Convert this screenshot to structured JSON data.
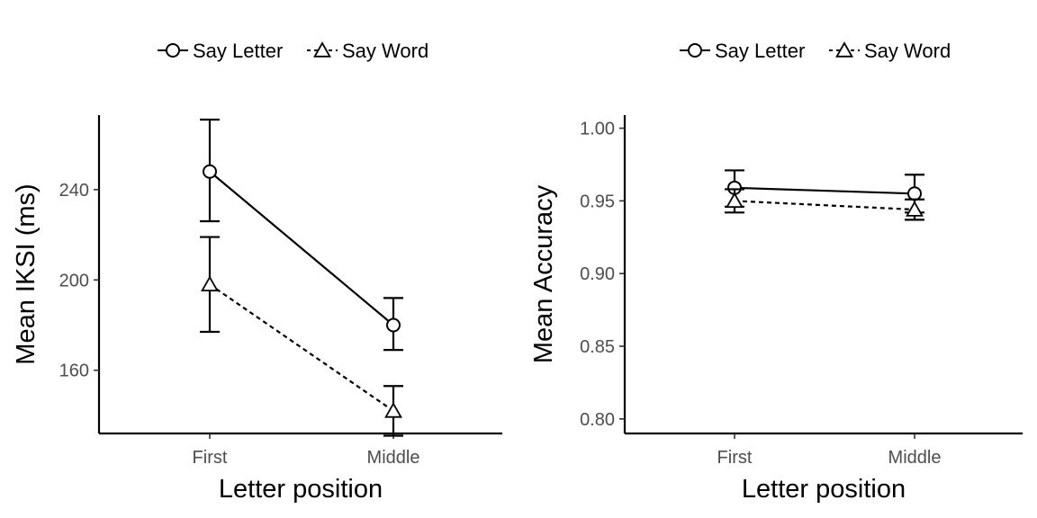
{
  "chart_data": [
    {
      "type": "line",
      "xlabel": "Letter position",
      "ylabel": "Mean IKSI (ms)",
      "categories": [
        "First",
        "Middle"
      ],
      "yticks": [
        160,
        200,
        240
      ],
      "ylim": [
        132,
        273
      ],
      "grid": false,
      "legend_position": "top",
      "series": [
        {
          "name": "Say Letter",
          "marker": "circle",
          "linestyle": "solid",
          "values": [
            248,
            180
          ],
          "err_low": [
            226,
            169
          ],
          "err_high": [
            271,
            192
          ]
        },
        {
          "name": "Say Word",
          "marker": "triangle",
          "linestyle": "dashed",
          "values": [
            198,
            142
          ],
          "err_low": [
            177,
            131
          ],
          "err_high": [
            219,
            153
          ]
        }
      ]
    },
    {
      "type": "line",
      "xlabel": "Letter position",
      "ylabel": "Mean Accuracy",
      "categories": [
        "First",
        "Middle"
      ],
      "yticks": [
        "0.80",
        "0.85",
        "0.90",
        "0.95",
        "1.00"
      ],
      "ylim": [
        0.79,
        1.009
      ],
      "grid": false,
      "legend_position": "top",
      "series": [
        {
          "name": "Say Letter",
          "marker": "circle",
          "linestyle": "solid",
          "values": [
            0.959,
            0.955
          ],
          "err_low": [
            0.946,
            0.942
          ],
          "err_high": [
            0.971,
            0.968
          ]
        },
        {
          "name": "Say Word",
          "marker": "triangle",
          "linestyle": "dashed",
          "values": [
            0.95,
            0.944
          ],
          "err_low": [
            0.942,
            0.937
          ],
          "err_high": [
            0.958,
            0.951
          ]
        }
      ]
    }
  ]
}
